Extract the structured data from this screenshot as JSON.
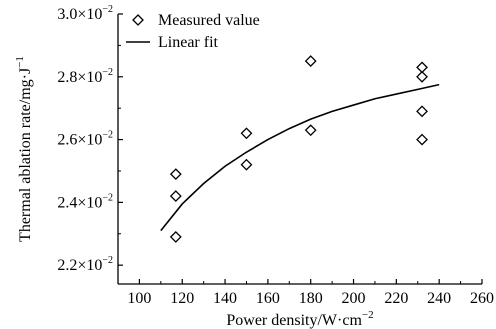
{
  "chart_data": {
    "type": "scatter",
    "title": "",
    "xlabel": "Power density/W·cm",
    "xlabel_sup": "−2",
    "ylabel": "Thermal ablation rate/mg·J",
    "ylabel_sup": "−1",
    "xlim": [
      90,
      260
    ],
    "ylim": [
      2.14,
      3.0
    ],
    "x_ticks": [
      100,
      120,
      140,
      160,
      180,
      200,
      220,
      240,
      260
    ],
    "x_tick_labels": [
      "100",
      "120",
      "140",
      "160",
      "180",
      "200",
      "220",
      "240",
      "260"
    ],
    "y_ticks": [
      2.2,
      2.4,
      2.6,
      2.8,
      3.0
    ],
    "y_tick_labels": [
      {
        "mantissa": "2.2×10",
        "exp": "−2"
      },
      {
        "mantissa": "2.4×10",
        "exp": "−2"
      },
      {
        "mantissa": "2.6×10",
        "exp": "−2"
      },
      {
        "mantissa": "2.8×10",
        "exp": "−2"
      },
      {
        "mantissa": "3.0×10",
        "exp": "−2"
      }
    ],
    "grid": false,
    "legend_position": "top-left",
    "series": [
      {
        "name": "Measured value",
        "kind": "scatter",
        "marker": "diamond",
        "color": "#000000",
        "x": [
          117,
          117,
          117,
          150,
          150,
          180,
          180,
          232,
          232,
          232,
          232
        ],
        "y": [
          2.29,
          2.42,
          2.49,
          2.52,
          2.62,
          2.63,
          2.85,
          2.6,
          2.69,
          2.8,
          2.83
        ]
      },
      {
        "name": "Linear fit",
        "kind": "line",
        "color": "#000000",
        "x": [
          110,
          120,
          130,
          140,
          150,
          160,
          170,
          180,
          190,
          200,
          210,
          220,
          230,
          240
        ],
        "y": [
          2.31,
          2.395,
          2.46,
          2.515,
          2.56,
          2.6,
          2.635,
          2.665,
          2.69,
          2.71,
          2.73,
          2.745,
          2.76,
          2.775
        ]
      }
    ]
  }
}
